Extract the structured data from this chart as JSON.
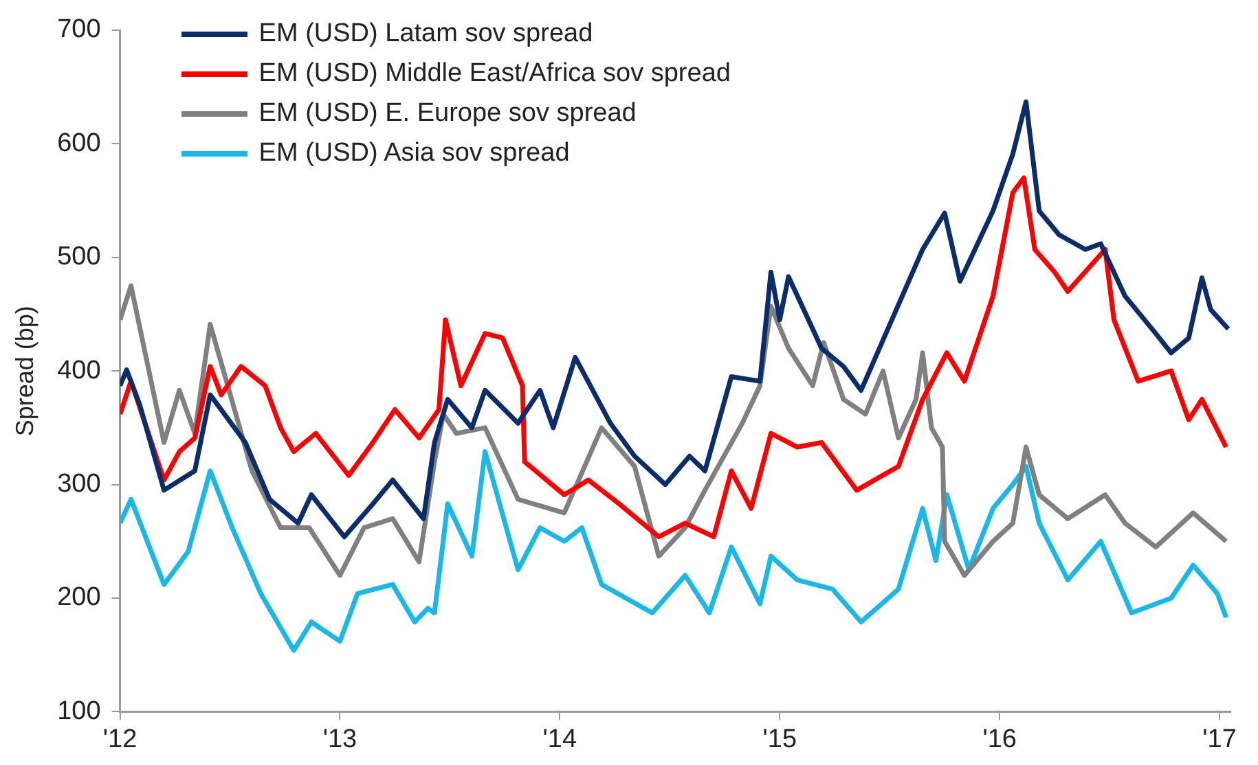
{
  "chart_data": {
    "type": "line",
    "ylabel": "Spread (bp)",
    "xlim": [
      2012,
      2017.05
    ],
    "xticks": [
      {
        "value": 2012,
        "label": "'12"
      },
      {
        "value": 2013,
        "label": "'13"
      },
      {
        "value": 2014,
        "label": "'14"
      },
      {
        "value": 2015,
        "label": "'15"
      },
      {
        "value": 2016,
        "label": "'16"
      },
      {
        "value": 2017,
        "label": "'17"
      }
    ],
    "ylim": [
      100,
      700
    ],
    "yticks": [
      100,
      200,
      300,
      400,
      500,
      600,
      700
    ],
    "grid": false,
    "legend": "top left",
    "marker": "none",
    "line_style": "solid",
    "series": [
      {
        "name": "EM (USD) Latam sov spread",
        "color": "#0b2d6b",
        "x": [
          2012.0,
          2012.03,
          2012.09,
          2012.2,
          2012.34,
          2012.41,
          2012.57,
          2012.68,
          2012.81,
          2012.87,
          2013.02,
          2013.15,
          2013.24,
          2013.38,
          2013.43,
          2013.49,
          2013.6,
          2013.66,
          2013.81,
          2013.91,
          2013.97,
          2014.07,
          2014.23,
          2014.34,
          2014.48,
          2014.59,
          2014.66,
          2014.78,
          2014.91,
          2014.96,
          2015.0,
          2015.04,
          2015.15,
          2015.19,
          2015.29,
          2015.37,
          2015.65,
          2015.75,
          2015.82,
          2015.97,
          2016.06,
          2016.12,
          2016.18,
          2016.27,
          2016.39,
          2016.46,
          2016.57,
          2016.71,
          2016.78,
          2016.86,
          2016.92,
          2016.96,
          2017.04
        ],
        "values": [
          387,
          401,
          370,
          295,
          312,
          379,
          337,
          287,
          266,
          291,
          254,
          283,
          304,
          270,
          337,
          375,
          350,
          383,
          354,
          383,
          350,
          412,
          354,
          325,
          300,
          325,
          312,
          395,
          391,
          487,
          445,
          483,
          437,
          420,
          404,
          383,
          507,
          539,
          479,
          541,
          591,
          637,
          541,
          520,
          507,
          512,
          466,
          433,
          416,
          429,
          482,
          454,
          437
        ]
      },
      {
        "name": "EM (USD) Middle East/Africa sov spread",
        "color": "#ff0000",
        "x": [
          2012.0,
          2012.05,
          2012.2,
          2012.27,
          2012.34,
          2012.41,
          2012.46,
          2012.55,
          2012.66,
          2012.73,
          2012.79,
          2012.89,
          2013.04,
          2013.15,
          2013.25,
          2013.36,
          2013.45,
          2013.48,
          2013.55,
          2013.66,
          2013.74,
          2013.83,
          2013.84,
          2014.02,
          2014.13,
          2014.27,
          2014.45,
          2014.57,
          2014.7,
          2014.78,
          2014.87,
          2014.96,
          2015.08,
          2015.19,
          2015.35,
          2015.54,
          2015.65,
          2015.76,
          2015.84,
          2015.97,
          2016.06,
          2016.11,
          2016.16,
          2016.25,
          2016.31,
          2016.48,
          2016.52,
          2016.63,
          2016.78,
          2016.86,
          2016.92,
          2017.03
        ],
        "values": [
          362,
          391,
          304,
          329,
          341,
          404,
          379,
          404,
          387,
          350,
          329,
          345,
          308,
          337,
          366,
          341,
          366,
          445,
          387,
          433,
          429,
          387,
          320,
          291,
          304,
          283,
          254,
          266,
          254,
          312,
          279,
          345,
          333,
          337,
          295,
          316,
          375,
          416,
          391,
          466,
          557,
          570,
          507,
          487,
          470,
          507,
          445,
          391,
          400,
          357,
          375,
          333
        ]
      },
      {
        "name": "EM (USD) E. Europe sov spread",
        "color": "#808080",
        "x": [
          2012.0,
          2012.05,
          2012.2,
          2012.27,
          2012.34,
          2012.41,
          2012.49,
          2012.6,
          2012.73,
          2012.86,
          2013.0,
          2013.11,
          2013.24,
          2013.36,
          2013.43,
          2013.47,
          2013.53,
          2013.66,
          2013.81,
          2014.02,
          2014.19,
          2014.34,
          2014.45,
          2014.57,
          2014.66,
          2014.83,
          2014.91,
          2014.96,
          2015.04,
          2015.15,
          2015.2,
          2015.29,
          2015.39,
          2015.47,
          2015.54,
          2015.62,
          2015.65,
          2015.69,
          2015.74,
          2015.75,
          2015.84,
          2015.97,
          2016.06,
          2016.12,
          2016.18,
          2016.31,
          2016.48,
          2016.57,
          2016.71,
          2016.88,
          2017.03
        ],
        "values": [
          445,
          475,
          337,
          383,
          345,
          441,
          387,
          312,
          262,
          262,
          220,
          262,
          270,
          232,
          320,
          362,
          345,
          350,
          287,
          275,
          350,
          316,
          237,
          262,
          295,
          354,
          387,
          457,
          420,
          387,
          425,
          375,
          362,
          400,
          341,
          375,
          416,
          350,
          333,
          250,
          220,
          250,
          266,
          333,
          291,
          270,
          291,
          266,
          245,
          275,
          250
        ]
      },
      {
        "name": "EM (USD) Asia sov spread",
        "color": "#1ab8e8",
        "x": [
          2012.0,
          2012.05,
          2012.2,
          2012.31,
          2012.41,
          2012.51,
          2012.64,
          2012.79,
          2012.87,
          2013.0,
          2013.08,
          2013.24,
          2013.34,
          2013.4,
          2013.43,
          2013.49,
          2013.6,
          2013.66,
          2013.81,
          2013.91,
          2014.02,
          2014.1,
          2014.19,
          2014.42,
          2014.57,
          2014.68,
          2014.78,
          2014.91,
          2014.96,
          2015.08,
          2015.24,
          2015.37,
          2015.54,
          2015.65,
          2015.71,
          2015.76,
          2015.86,
          2015.97,
          2016.06,
          2016.12,
          2016.18,
          2016.31,
          2016.46,
          2016.6,
          2016.78,
          2016.88,
          2016.99,
          2017.03
        ],
        "values": [
          266,
          287,
          212,
          241,
          312,
          262,
          204,
          154,
          179,
          162,
          204,
          212,
          179,
          191,
          187,
          283,
          237,
          329,
          225,
          262,
          250,
          262,
          212,
          187,
          220,
          187,
          245,
          195,
          237,
          216,
          208,
          179,
          208,
          279,
          233,
          291,
          225,
          279,
          300,
          316,
          266,
          216,
          250,
          187,
          200,
          229,
          204,
          183
        ]
      }
    ]
  }
}
